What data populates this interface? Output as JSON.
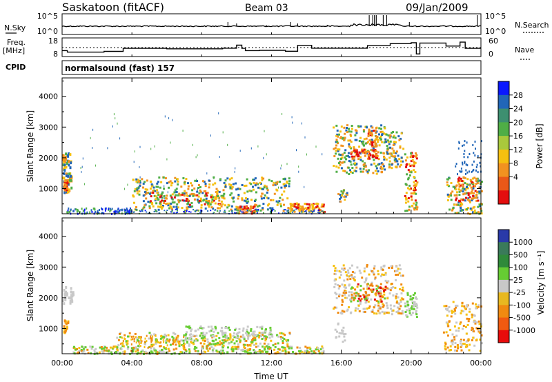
{
  "header": {
    "station": "Saskatoon (fitACF)",
    "beam": "Beam 03",
    "date": "09/Jan/2009",
    "cpid_label": "CPID",
    "cpid_value": "normalsound (fast) 157"
  },
  "noise_panel": {
    "left_label": "N.Sky",
    "right_label": "N.Search",
    "left_ticks": [
      "10^5",
      "10^0"
    ],
    "right_ticks": [
      "10^5",
      "10^0"
    ]
  },
  "freq_panel": {
    "left_label_1": "Freq.",
    "left_label_2": "[MHz]",
    "right_label": "Nave",
    "left_ticks": [
      "18",
      "8"
    ],
    "right_ticks": [
      "60",
      "0"
    ],
    "freq_steps": [
      {
        "t": 0,
        "v": 11
      },
      {
        "t": 0.3,
        "v": 10
      },
      {
        "t": 1.5,
        "v": 10
      },
      {
        "t": 2.4,
        "v": 10.5
      },
      {
        "t": 3.5,
        "v": 12.5
      },
      {
        "t": 6.0,
        "v": 12.2
      },
      {
        "t": 9.2,
        "v": 12.6
      },
      {
        "t": 10.0,
        "v": 14.6
      },
      {
        "t": 10.3,
        "v": 12.5
      },
      {
        "t": 10.5,
        "v": 11.0
      },
      {
        "t": 11.3,
        "v": 11.2
      },
      {
        "t": 12.8,
        "v": 10.6
      },
      {
        "t": 13.5,
        "v": 14.5
      },
      {
        "t": 14.3,
        "v": 12.6
      },
      {
        "t": 16.5,
        "v": 12.6
      },
      {
        "t": 17.5,
        "v": 14.3
      },
      {
        "t": 18.8,
        "v": 15.6
      },
      {
        "t": 20.0,
        "v": 16.2
      },
      {
        "t": 20.3,
        "v": 8.8
      },
      {
        "t": 20.5,
        "v": 16.0
      },
      {
        "t": 22.0,
        "v": 14.0
      },
      {
        "t": 22.8,
        "v": 16.6
      },
      {
        "t": 23.1,
        "v": 12.5
      },
      {
        "t": 24.0,
        "v": 12.5
      }
    ],
    "nave_dotted_level": 30
  },
  "chart_data": [
    {
      "type": "heatmap",
      "name": "power",
      "ylabel": "Slant Range [km]",
      "ylim": [
        180,
        4600
      ],
      "yticks": [
        1000,
        2000,
        3000,
        4000
      ],
      "xlim": [
        0,
        24
      ],
      "colorbar_label": "Power [dB]",
      "colorbar_ticks": [
        "28",
        "24",
        "20",
        "16",
        "12",
        "8",
        "4"
      ],
      "colorbar_colors": [
        "#0a18ff",
        "#2166b8",
        "#3d8f70",
        "#4fae46",
        "#a9c93c",
        "#f6c010",
        "#f29220",
        "#ea5818",
        "#e40e0e"
      ]
    },
    {
      "type": "heatmap",
      "name": "velocity",
      "ylabel": "Slant Range [km]",
      "ylim": [
        180,
        4600
      ],
      "yticks": [
        1000,
        2000,
        3000,
        4000
      ],
      "xlim": [
        0,
        24
      ],
      "xlabel": "Time UT",
      "xtick_labels": [
        "00:00",
        "04:00",
        "08:00",
        "12:00",
        "16:00",
        "20:00",
        "00:00"
      ],
      "colorbar_label": "Velocity [m s⁻¹]",
      "colorbar_ticks": [
        "1000",
        "500",
        "100",
        "25",
        "-25",
        "-100",
        "-500",
        "-1000"
      ],
      "colorbar_colors": [
        "#2a3aa8",
        "#3a7a5a",
        "#2f8a3a",
        "#66cc33",
        "#c8c8c8",
        "#e8b820",
        "#f08a10",
        "#f05a10",
        "#e80c0c"
      ]
    }
  ],
  "colors": {
    "power_red": "#e40e0e",
    "power_orange": "#f29220",
    "power_yellow": "#f6c010",
    "power_green": "#4fae46",
    "power_blue": "#2166b8",
    "vel_grey": "#c8c8c8",
    "vel_green": "#66cc33",
    "vel_orange": "#f08a10"
  }
}
